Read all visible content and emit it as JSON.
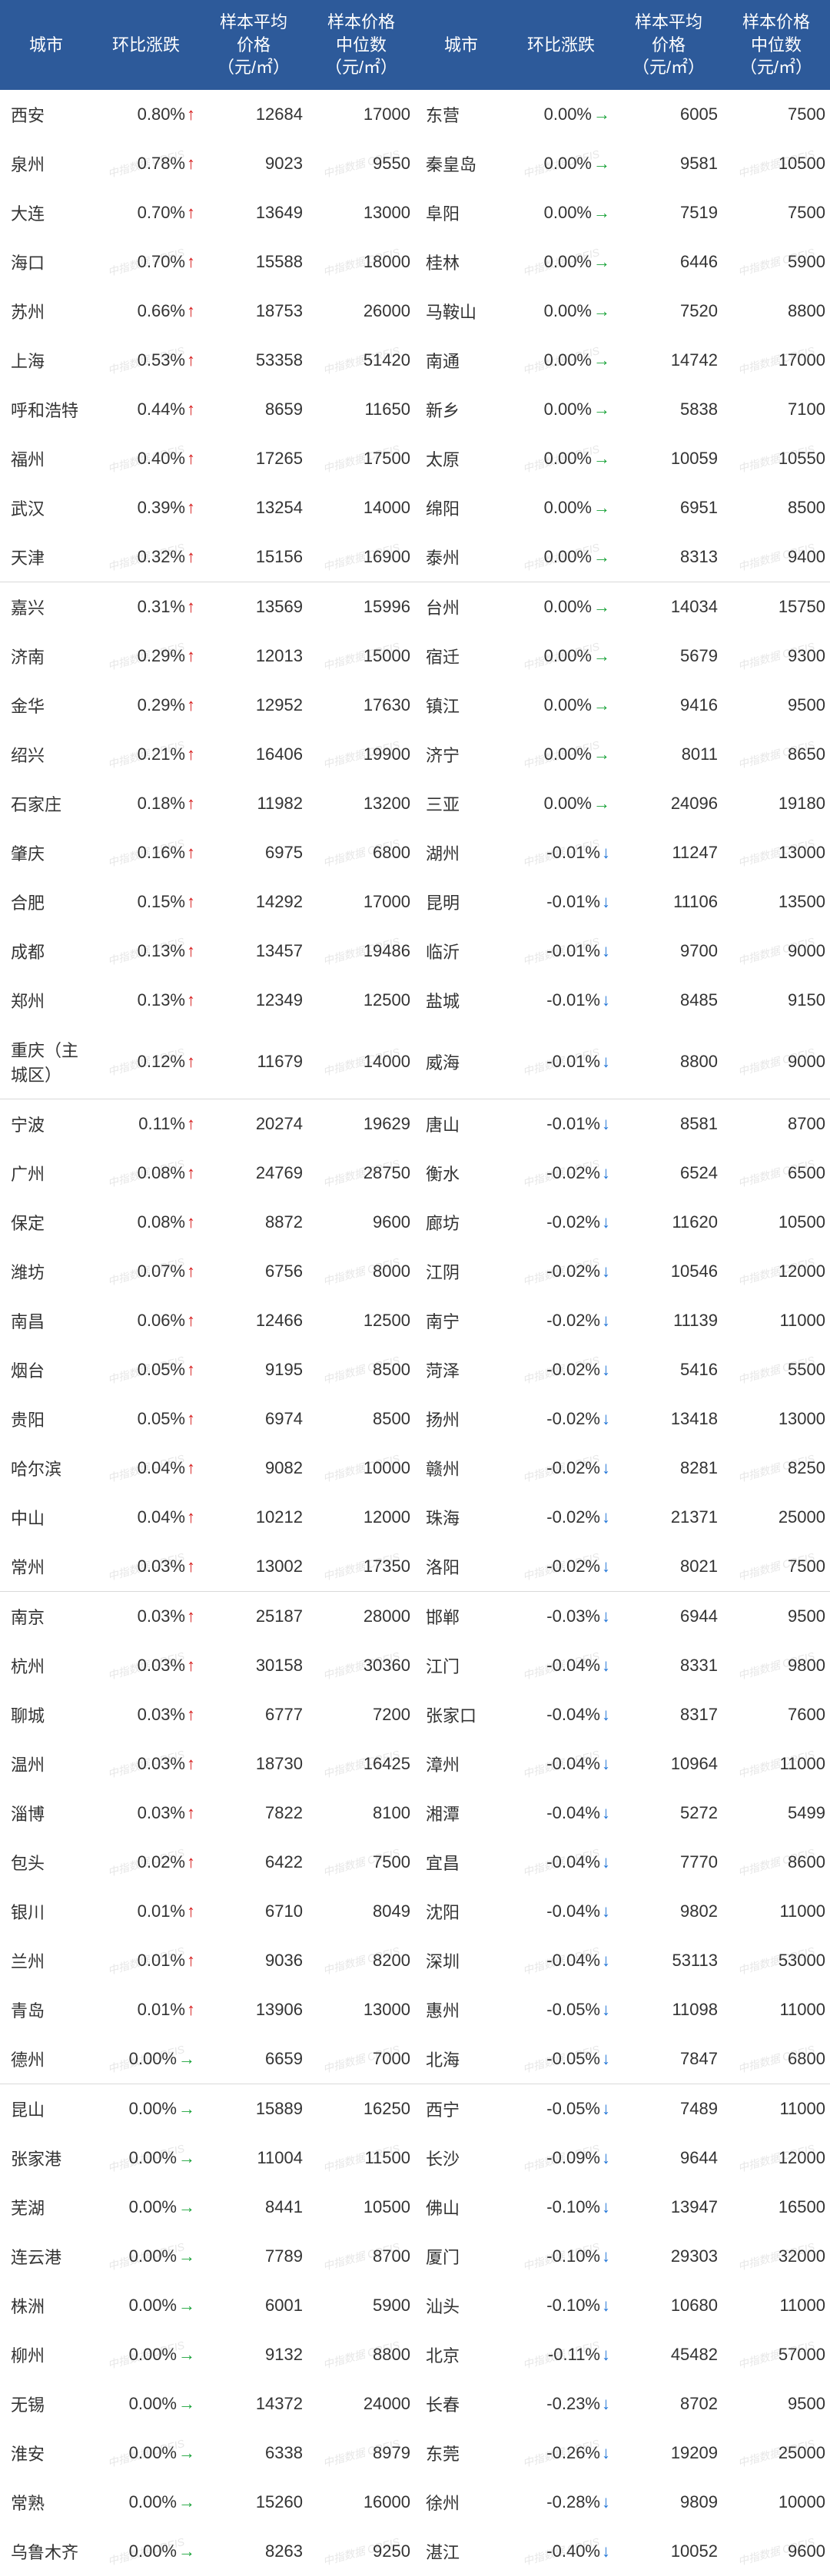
{
  "watermark": "中指数据 CREIS",
  "headers": {
    "city": "城市",
    "change": "环比涨跌",
    "avg_line1": "样本平均",
    "avg_line2": "价格",
    "avg_line3": "（元/㎡）",
    "med_line1": "样本价格",
    "med_line2": "中位数",
    "med_line3": "（元/㎡）"
  },
  "block_size": 10,
  "colors": {
    "header_bg": "#2d5a9a",
    "header_text": "#ffffff",
    "arrow_up": "#d71c1c",
    "arrow_flat": "#1aa33a",
    "arrow_down": "#1e73d6",
    "separator": "#d9d9d9",
    "background": "#ffffff"
  },
  "left": [
    {
      "city": "西安",
      "pct": "0.80%",
      "dir": "up",
      "avg": "12684",
      "med": "17000"
    },
    {
      "city": "泉州",
      "pct": "0.78%",
      "dir": "up",
      "avg": "9023",
      "med": "9550"
    },
    {
      "city": "大连",
      "pct": "0.70%",
      "dir": "up",
      "avg": "13649",
      "med": "13000"
    },
    {
      "city": "海口",
      "pct": "0.70%",
      "dir": "up",
      "avg": "15588",
      "med": "18000"
    },
    {
      "city": "苏州",
      "pct": "0.66%",
      "dir": "up",
      "avg": "18753",
      "med": "26000"
    },
    {
      "city": "上海",
      "pct": "0.53%",
      "dir": "up",
      "avg": "53358",
      "med": "51420"
    },
    {
      "city": "呼和浩特",
      "pct": "0.44%",
      "dir": "up",
      "avg": "8659",
      "med": "11650"
    },
    {
      "city": "福州",
      "pct": "0.40%",
      "dir": "up",
      "avg": "17265",
      "med": "17500"
    },
    {
      "city": "武汉",
      "pct": "0.39%",
      "dir": "up",
      "avg": "13254",
      "med": "14000"
    },
    {
      "city": "天津",
      "pct": "0.32%",
      "dir": "up",
      "avg": "15156",
      "med": "16900"
    },
    {
      "city": "嘉兴",
      "pct": "0.31%",
      "dir": "up",
      "avg": "13569",
      "med": "15996"
    },
    {
      "city": "济南",
      "pct": "0.29%",
      "dir": "up",
      "avg": "12013",
      "med": "15000"
    },
    {
      "city": "金华",
      "pct": "0.29%",
      "dir": "up",
      "avg": "12952",
      "med": "17630"
    },
    {
      "city": "绍兴",
      "pct": "0.21%",
      "dir": "up",
      "avg": "16406",
      "med": "19900"
    },
    {
      "city": "石家庄",
      "pct": "0.18%",
      "dir": "up",
      "avg": "11982",
      "med": "13200"
    },
    {
      "city": "肇庆",
      "pct": "0.16%",
      "dir": "up",
      "avg": "6975",
      "med": "6800"
    },
    {
      "city": "合肥",
      "pct": "0.15%",
      "dir": "up",
      "avg": "14292",
      "med": "17000"
    },
    {
      "city": "成都",
      "pct": "0.13%",
      "dir": "up",
      "avg": "13457",
      "med": "19486"
    },
    {
      "city": "郑州",
      "pct": "0.13%",
      "dir": "up",
      "avg": "12349",
      "med": "12500"
    },
    {
      "city": "重庆（主城区）",
      "pct": "0.12%",
      "dir": "up",
      "avg": "11679",
      "med": "14000"
    },
    {
      "city": "宁波",
      "pct": "0.11%",
      "dir": "up",
      "avg": "20274",
      "med": "19629"
    },
    {
      "city": "广州",
      "pct": "0.08%",
      "dir": "up",
      "avg": "24769",
      "med": "28750"
    },
    {
      "city": "保定",
      "pct": "0.08%",
      "dir": "up",
      "avg": "8872",
      "med": "9600"
    },
    {
      "city": "潍坊",
      "pct": "0.07%",
      "dir": "up",
      "avg": "6756",
      "med": "8000"
    },
    {
      "city": "南昌",
      "pct": "0.06%",
      "dir": "up",
      "avg": "12466",
      "med": "12500"
    },
    {
      "city": "烟台",
      "pct": "0.05%",
      "dir": "up",
      "avg": "9195",
      "med": "8500"
    },
    {
      "city": "贵阳",
      "pct": "0.05%",
      "dir": "up",
      "avg": "6974",
      "med": "8500"
    },
    {
      "city": "哈尔滨",
      "pct": "0.04%",
      "dir": "up",
      "avg": "9082",
      "med": "10000"
    },
    {
      "city": "中山",
      "pct": "0.04%",
      "dir": "up",
      "avg": "10212",
      "med": "12000"
    },
    {
      "city": "常州",
      "pct": "0.03%",
      "dir": "up",
      "avg": "13002",
      "med": "17350"
    },
    {
      "city": "南京",
      "pct": "0.03%",
      "dir": "up",
      "avg": "25187",
      "med": "28000"
    },
    {
      "city": "杭州",
      "pct": "0.03%",
      "dir": "up",
      "avg": "30158",
      "med": "30360"
    },
    {
      "city": "聊城",
      "pct": "0.03%",
      "dir": "up",
      "avg": "6777",
      "med": "7200"
    },
    {
      "city": "温州",
      "pct": "0.03%",
      "dir": "up",
      "avg": "18730",
      "med": "16425"
    },
    {
      "city": "淄博",
      "pct": "0.03%",
      "dir": "up",
      "avg": "7822",
      "med": "8100"
    },
    {
      "city": "包头",
      "pct": "0.02%",
      "dir": "up",
      "avg": "6422",
      "med": "7500"
    },
    {
      "city": "银川",
      "pct": "0.01%",
      "dir": "up",
      "avg": "6710",
      "med": "8049"
    },
    {
      "city": "兰州",
      "pct": "0.01%",
      "dir": "up",
      "avg": "9036",
      "med": "8200"
    },
    {
      "city": "青岛",
      "pct": "0.01%",
      "dir": "up",
      "avg": "13906",
      "med": "13000"
    },
    {
      "city": "德州",
      "pct": "0.00%",
      "dir": "flat",
      "avg": "6659",
      "med": "7000"
    },
    {
      "city": "昆山",
      "pct": "0.00%",
      "dir": "flat",
      "avg": "15889",
      "med": "16250"
    },
    {
      "city": "张家港",
      "pct": "0.00%",
      "dir": "flat",
      "avg": "11004",
      "med": "11500"
    },
    {
      "city": "芜湖",
      "pct": "0.00%",
      "dir": "flat",
      "avg": "8441",
      "med": "10500"
    },
    {
      "city": "连云港",
      "pct": "0.00%",
      "dir": "flat",
      "avg": "7789",
      "med": "8700"
    },
    {
      "city": "株洲",
      "pct": "0.00%",
      "dir": "flat",
      "avg": "6001",
      "med": "5900"
    },
    {
      "city": "柳州",
      "pct": "0.00%",
      "dir": "flat",
      "avg": "9132",
      "med": "8800"
    },
    {
      "city": "无锡",
      "pct": "0.00%",
      "dir": "flat",
      "avg": "14372",
      "med": "24000"
    },
    {
      "city": "淮安",
      "pct": "0.00%",
      "dir": "flat",
      "avg": "6338",
      "med": "8979"
    },
    {
      "city": "常熟",
      "pct": "0.00%",
      "dir": "flat",
      "avg": "15260",
      "med": "16000"
    },
    {
      "city": "乌鲁木齐",
      "pct": "0.00%",
      "dir": "flat",
      "avg": "8263",
      "med": "9250"
    }
  ],
  "right": [
    {
      "city": "东营",
      "pct": "0.00%",
      "dir": "flat",
      "avg": "6005",
      "med": "7500"
    },
    {
      "city": "秦皇岛",
      "pct": "0.00%",
      "dir": "flat",
      "avg": "9581",
      "med": "10500"
    },
    {
      "city": "阜阳",
      "pct": "0.00%",
      "dir": "flat",
      "avg": "7519",
      "med": "7500"
    },
    {
      "city": "桂林",
      "pct": "0.00%",
      "dir": "flat",
      "avg": "6446",
      "med": "5900"
    },
    {
      "city": "马鞍山",
      "pct": "0.00%",
      "dir": "flat",
      "avg": "7520",
      "med": "8800"
    },
    {
      "city": "南通",
      "pct": "0.00%",
      "dir": "flat",
      "avg": "14742",
      "med": "17000"
    },
    {
      "city": "新乡",
      "pct": "0.00%",
      "dir": "flat",
      "avg": "5838",
      "med": "7100"
    },
    {
      "city": "太原",
      "pct": "0.00%",
      "dir": "flat",
      "avg": "10059",
      "med": "10550"
    },
    {
      "city": "绵阳",
      "pct": "0.00%",
      "dir": "flat",
      "avg": "6951",
      "med": "8500"
    },
    {
      "city": "泰州",
      "pct": "0.00%",
      "dir": "flat",
      "avg": "8313",
      "med": "9400"
    },
    {
      "city": "台州",
      "pct": "0.00%",
      "dir": "flat",
      "avg": "14034",
      "med": "15750"
    },
    {
      "city": "宿迁",
      "pct": "0.00%",
      "dir": "flat",
      "avg": "5679",
      "med": "9300"
    },
    {
      "city": "镇江",
      "pct": "0.00%",
      "dir": "flat",
      "avg": "9416",
      "med": "9500"
    },
    {
      "city": "济宁",
      "pct": "0.00%",
      "dir": "flat",
      "avg": "8011",
      "med": "8650"
    },
    {
      "city": "三亚",
      "pct": "0.00%",
      "dir": "flat",
      "avg": "24096",
      "med": "19180"
    },
    {
      "city": "湖州",
      "pct": "-0.01%",
      "dir": "down",
      "avg": "11247",
      "med": "13000"
    },
    {
      "city": "昆明",
      "pct": "-0.01%",
      "dir": "down",
      "avg": "11106",
      "med": "13500"
    },
    {
      "city": "临沂",
      "pct": "-0.01%",
      "dir": "down",
      "avg": "9700",
      "med": "9000"
    },
    {
      "city": "盐城",
      "pct": "-0.01%",
      "dir": "down",
      "avg": "8485",
      "med": "9150"
    },
    {
      "city": "威海",
      "pct": "-0.01%",
      "dir": "down",
      "avg": "8800",
      "med": "9000"
    },
    {
      "city": "唐山",
      "pct": "-0.01%",
      "dir": "down",
      "avg": "8581",
      "med": "8700"
    },
    {
      "city": "衡水",
      "pct": "-0.02%",
      "dir": "down",
      "avg": "6524",
      "med": "6500"
    },
    {
      "city": "廊坊",
      "pct": "-0.02%",
      "dir": "down",
      "avg": "11620",
      "med": "10500"
    },
    {
      "city": "江阴",
      "pct": "-0.02%",
      "dir": "down",
      "avg": "10546",
      "med": "12000"
    },
    {
      "city": "南宁",
      "pct": "-0.02%",
      "dir": "down",
      "avg": "11139",
      "med": "11000"
    },
    {
      "city": "菏泽",
      "pct": "-0.02%",
      "dir": "down",
      "avg": "5416",
      "med": "5500"
    },
    {
      "city": "扬州",
      "pct": "-0.02%",
      "dir": "down",
      "avg": "13418",
      "med": "13000"
    },
    {
      "city": "赣州",
      "pct": "-0.02%",
      "dir": "down",
      "avg": "8281",
      "med": "8250"
    },
    {
      "city": "珠海",
      "pct": "-0.02%",
      "dir": "down",
      "avg": "21371",
      "med": "25000"
    },
    {
      "city": "洛阳",
      "pct": "-0.02%",
      "dir": "down",
      "avg": "8021",
      "med": "7500"
    },
    {
      "city": "邯郸",
      "pct": "-0.03%",
      "dir": "down",
      "avg": "6944",
      "med": "9500"
    },
    {
      "city": "江门",
      "pct": "-0.04%",
      "dir": "down",
      "avg": "8331",
      "med": "9800"
    },
    {
      "city": "张家口",
      "pct": "-0.04%",
      "dir": "down",
      "avg": "8317",
      "med": "7600"
    },
    {
      "city": "漳州",
      "pct": "-0.04%",
      "dir": "down",
      "avg": "10964",
      "med": "11000"
    },
    {
      "city": "湘潭",
      "pct": "-0.04%",
      "dir": "down",
      "avg": "5272",
      "med": "5499"
    },
    {
      "city": "宜昌",
      "pct": "-0.04%",
      "dir": "down",
      "avg": "7770",
      "med": "8600"
    },
    {
      "city": "沈阳",
      "pct": "-0.04%",
      "dir": "down",
      "avg": "9802",
      "med": "11000"
    },
    {
      "city": "深圳",
      "pct": "-0.04%",
      "dir": "down",
      "avg": "53113",
      "med": "53000"
    },
    {
      "city": "惠州",
      "pct": "-0.05%",
      "dir": "down",
      "avg": "11098",
      "med": "11000"
    },
    {
      "city": "北海",
      "pct": "-0.05%",
      "dir": "down",
      "avg": "7847",
      "med": "6800"
    },
    {
      "city": "西宁",
      "pct": "-0.05%",
      "dir": "down",
      "avg": "7489",
      "med": "11000"
    },
    {
      "city": "长沙",
      "pct": "-0.09%",
      "dir": "down",
      "avg": "9644",
      "med": "12000"
    },
    {
      "city": "佛山",
      "pct": "-0.10%",
      "dir": "down",
      "avg": "13947",
      "med": "16500"
    },
    {
      "city": "厦门",
      "pct": "-0.10%",
      "dir": "down",
      "avg": "29303",
      "med": "32000"
    },
    {
      "city": "汕头",
      "pct": "-0.10%",
      "dir": "down",
      "avg": "10680",
      "med": "11000"
    },
    {
      "city": "北京",
      "pct": "-0.11%",
      "dir": "down",
      "avg": "45482",
      "med": "57000"
    },
    {
      "city": "长春",
      "pct": "-0.23%",
      "dir": "down",
      "avg": "8702",
      "med": "9500"
    },
    {
      "city": "东莞",
      "pct": "-0.26%",
      "dir": "down",
      "avg": "19209",
      "med": "25000"
    },
    {
      "city": "徐州",
      "pct": "-0.28%",
      "dir": "down",
      "avg": "9809",
      "med": "10000"
    },
    {
      "city": "湛江",
      "pct": "-0.40%",
      "dir": "down",
      "avg": "10052",
      "med": "9600"
    }
  ]
}
